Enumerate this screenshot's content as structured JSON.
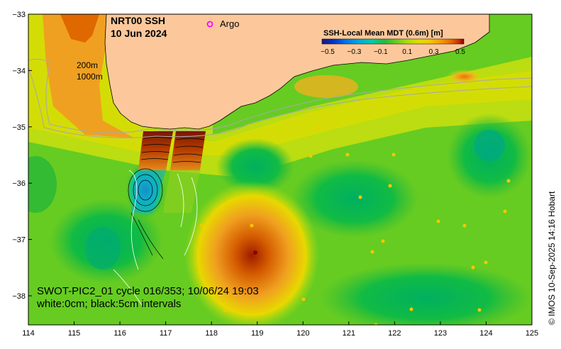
{
  "title": {
    "line1": "NRT00 SSH",
    "line2": "10 Jun 2024"
  },
  "legend": {
    "argo_label": "Argo",
    "argo_color": "#ff00ff"
  },
  "isobaths": {
    "shallow": "200m",
    "deep": "1000m"
  },
  "colorbar": {
    "title": "SSH-Local Mean MDT (0.6m) [m]",
    "ticks": [
      "−0.5",
      "−0.3",
      "−0.1",
      "0.1",
      "0.3",
      "0.5"
    ],
    "colors": [
      "#1a1a80",
      "#0033cc",
      "#0077ee",
      "#00aadd",
      "#00ccaa",
      "#22bb44",
      "#66cc22",
      "#aadd11",
      "#dddd00",
      "#f5c800",
      "#f59a00",
      "#e66a00",
      "#cc3300",
      "#8b0000"
    ]
  },
  "swot_note": {
    "line1": "SWOT-PIC2_01 cycle 016/353; 10/06/24 19:03",
    "line2": "white:0cm; black:5cm intervals"
  },
  "credit": "© IMOS 10-Sep-2025 14:16 Hobart",
  "axes": {
    "x_ticks": [
      "114",
      "115",
      "116",
      "117",
      "118",
      "119",
      "120",
      "121",
      "122",
      "123",
      "124",
      "125"
    ],
    "y_ticks": [
      "−33",
      "−34",
      "−35",
      "−36",
      "−37",
      "−38"
    ]
  },
  "colors": {
    "land": "#fcc89b",
    "ocean_base": "#66cc22",
    "warm_eddy": "#e68a1a",
    "cold_eddy": "#0099dd"
  }
}
